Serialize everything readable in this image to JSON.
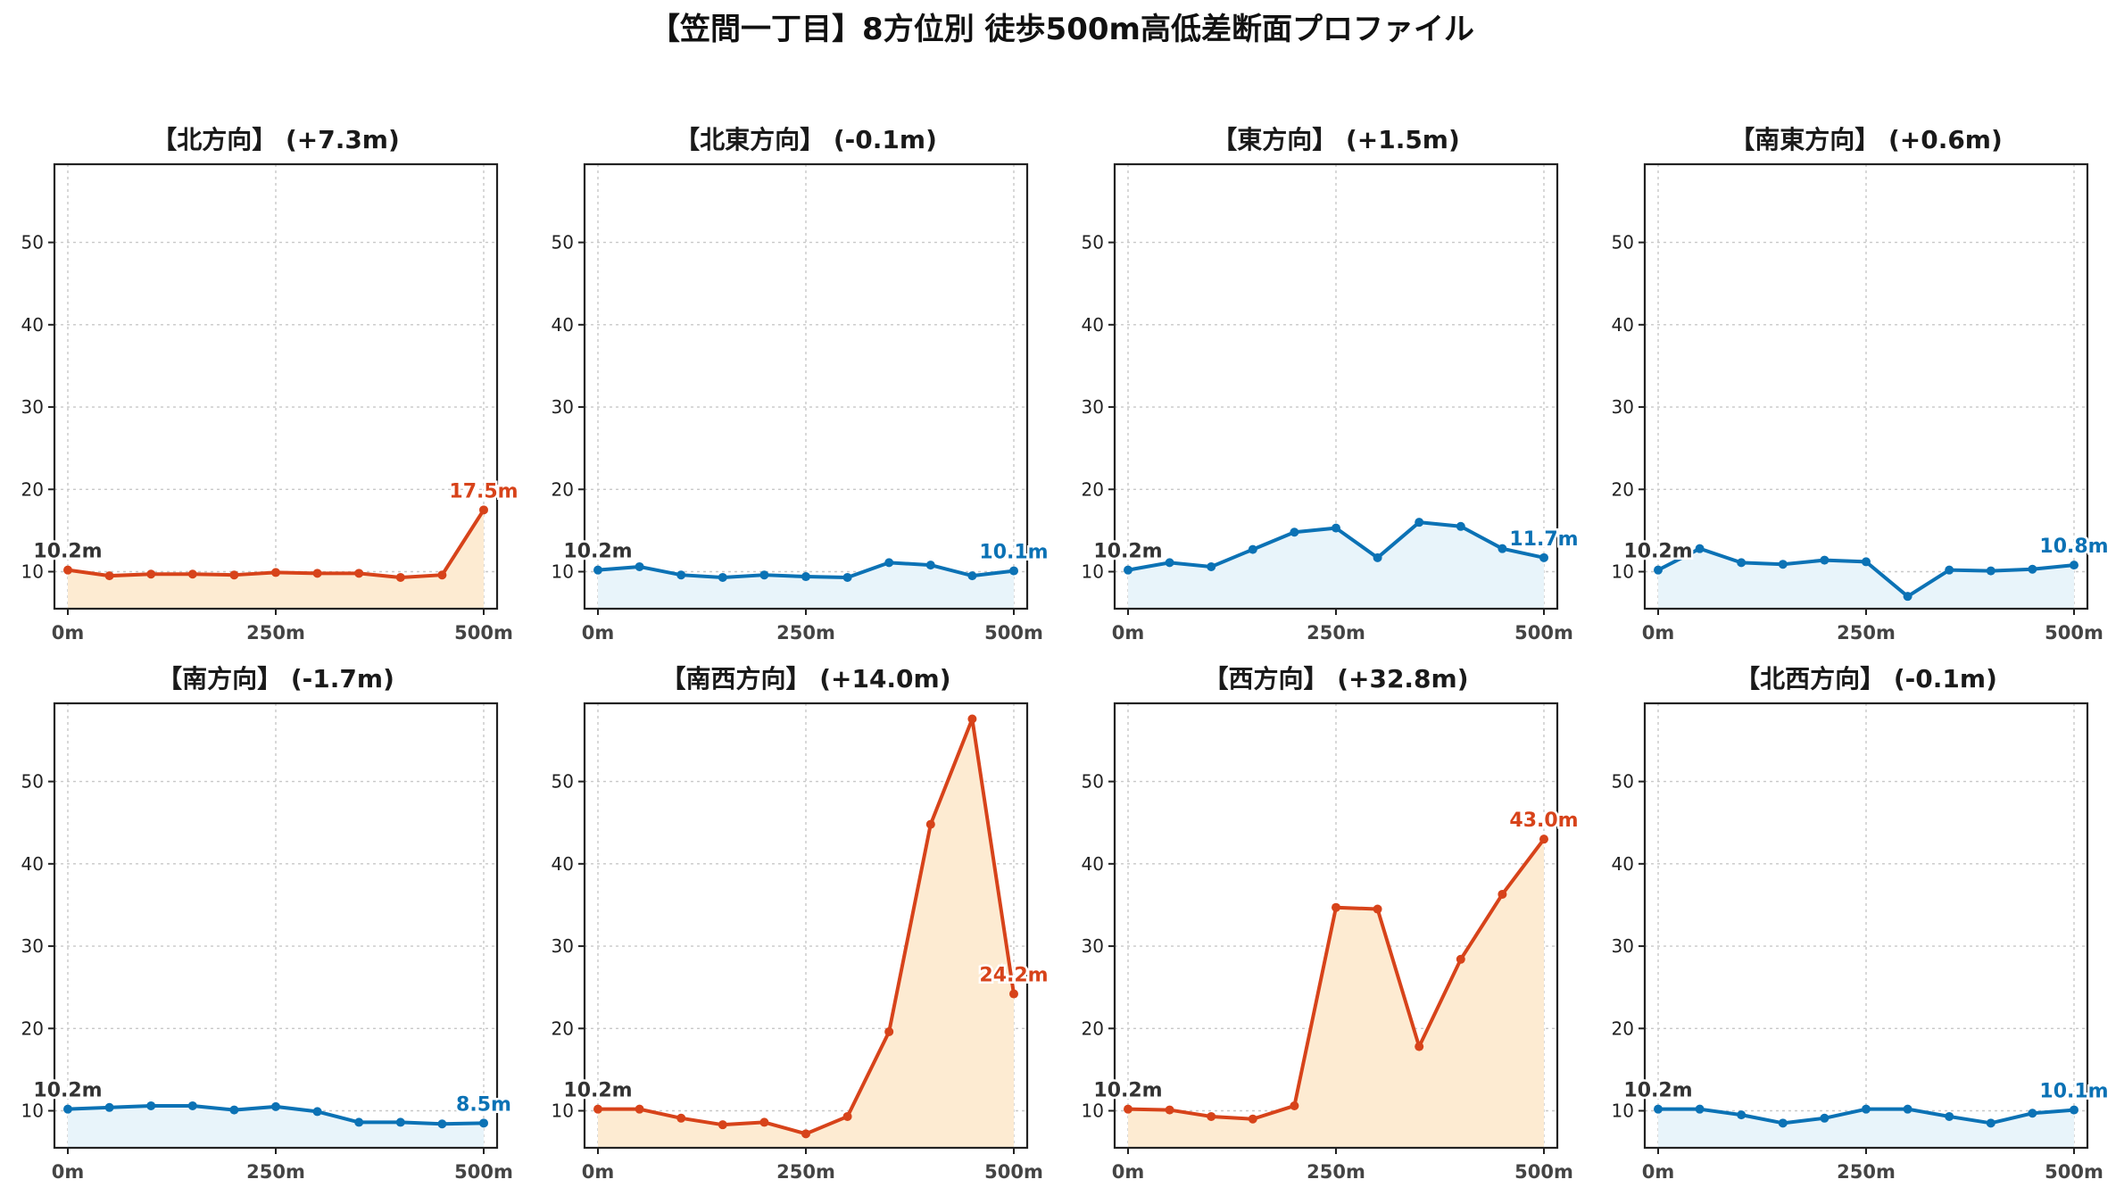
{
  "colors": {
    "up_line": "#d7431a",
    "up_fill": "#fdebd2",
    "down_line": "#0b72b5",
    "down_fill": "#e8f4fa",
    "start_label": "#333333"
  },
  "chart_data": {
    "title": "【笠間一丁目】8方位別 徒歩500m高低差断面プロファイル",
    "type": "line",
    "shared_y": {
      "ylim": [
        5.5,
        59.5
      ],
      "yticks": [
        10,
        20,
        30,
        40,
        50
      ]
    },
    "x": [
      0,
      50,
      100,
      150,
      200,
      250,
      300,
      350,
      400,
      450,
      500
    ],
    "xticks": [
      0,
      250,
      500
    ],
    "xtick_labels": [
      "0m",
      "250m",
      "500m"
    ],
    "grid": true,
    "panels": [
      {
        "title": "【北方向】 (+7.3m)",
        "trend": "up",
        "values": [
          10.2,
          9.5,
          9.7,
          9.7,
          9.6,
          9.9,
          9.8,
          9.8,
          9.3,
          9.6,
          17.5
        ],
        "start_label": "10.2m",
        "end_label": "17.5m"
      },
      {
        "title": "【北東方向】 (-0.1m)",
        "trend": "down",
        "values": [
          10.2,
          10.6,
          9.6,
          9.3,
          9.6,
          9.4,
          9.3,
          11.1,
          10.8,
          9.5,
          10.1
        ],
        "start_label": "10.2m",
        "end_label": "10.1m"
      },
      {
        "title": "【東方向】 (+1.5m)",
        "trend": "down",
        "values": [
          10.2,
          11.1,
          10.6,
          12.7,
          14.8,
          15.3,
          11.7,
          16.0,
          15.5,
          12.8,
          11.7
        ],
        "start_label": "10.2m",
        "end_label": "11.7m"
      },
      {
        "title": "【南東方向】 (+0.6m)",
        "trend": "down",
        "values": [
          10.2,
          12.8,
          11.1,
          10.9,
          11.4,
          11.2,
          7.0,
          10.2,
          10.1,
          10.3,
          10.8
        ],
        "start_label": "10.2m",
        "end_label": "10.8m"
      },
      {
        "title": "【南方向】 (-1.7m)",
        "trend": "down",
        "values": [
          10.2,
          10.4,
          10.6,
          10.6,
          10.1,
          10.5,
          9.9,
          8.6,
          8.6,
          8.4,
          8.5
        ],
        "start_label": "10.2m",
        "end_label": "8.5m"
      },
      {
        "title": "【南西方向】 (+14.0m)",
        "trend": "up",
        "values": [
          10.2,
          10.2,
          9.1,
          8.3,
          8.6,
          7.2,
          9.3,
          19.6,
          44.8,
          57.6,
          24.2
        ],
        "start_label": "10.2m",
        "end_label": "24.2m"
      },
      {
        "title": "【西方向】 (+32.8m)",
        "trend": "up",
        "values": [
          10.2,
          10.1,
          9.3,
          9.0,
          10.6,
          34.7,
          34.5,
          17.8,
          28.4,
          36.3,
          43.0
        ],
        "start_label": "10.2m",
        "end_label": "43.0m"
      },
      {
        "title": "【北西方向】 (-0.1m)",
        "trend": "down",
        "values": [
          10.2,
          10.2,
          9.5,
          8.5,
          9.1,
          10.2,
          10.2,
          9.3,
          8.5,
          9.7,
          10.1
        ],
        "start_label": "10.2m",
        "end_label": "10.1m"
      }
    ]
  }
}
